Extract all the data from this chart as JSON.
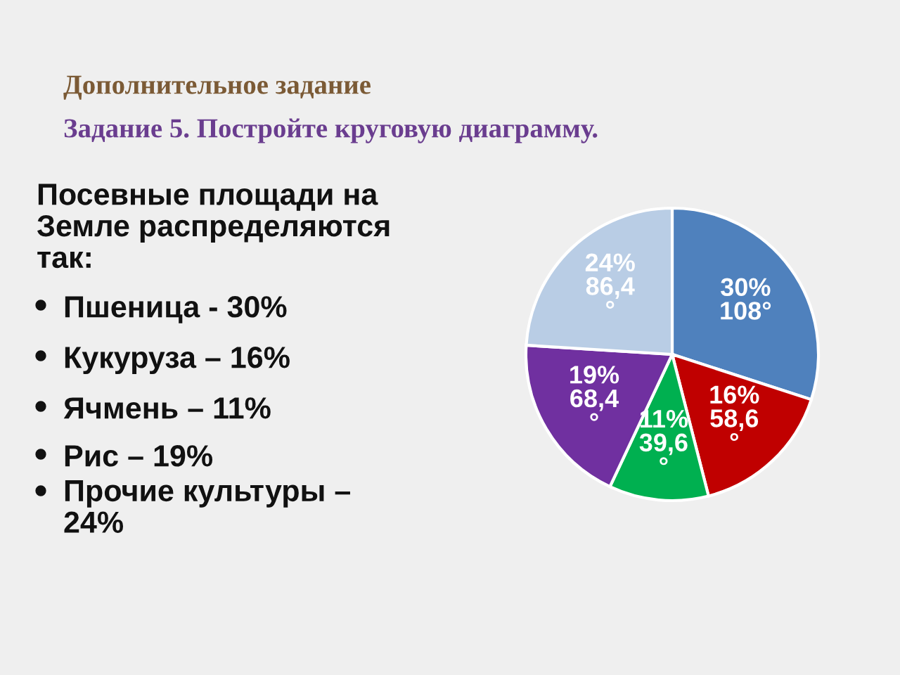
{
  "chart_data": {
    "type": "pie",
    "title": "Дополнительное задание",
    "subtitle": "Задание 5. Постройте круговую диаграмму.",
    "categories": [
      null,
      null,
      null,
      null,
      null
    ],
    "values": [
      30,
      16,
      11,
      19,
      24
    ],
    "colors": [
      "#4f81bd",
      "#c00000",
      "#00b050",
      "#7030a0",
      "#b9cde5"
    ],
    "value_labels": [
      "30%\n108°",
      "16%\n58,6\n°",
      "11%\n39,6\n°",
      "19%\n68,4\n°",
      "24%\n86,4\n°"
    ],
    "annotations": [
      "Посевные площади на\nЗемле распределяются\nтак:",
      "Пшеница - 30%",
      "Кукуруза – 16%",
      "Ячмень – 11%",
      "Рис – 19%",
      "Прочие культуры –\n24%"
    ],
    "legend": false
  }
}
